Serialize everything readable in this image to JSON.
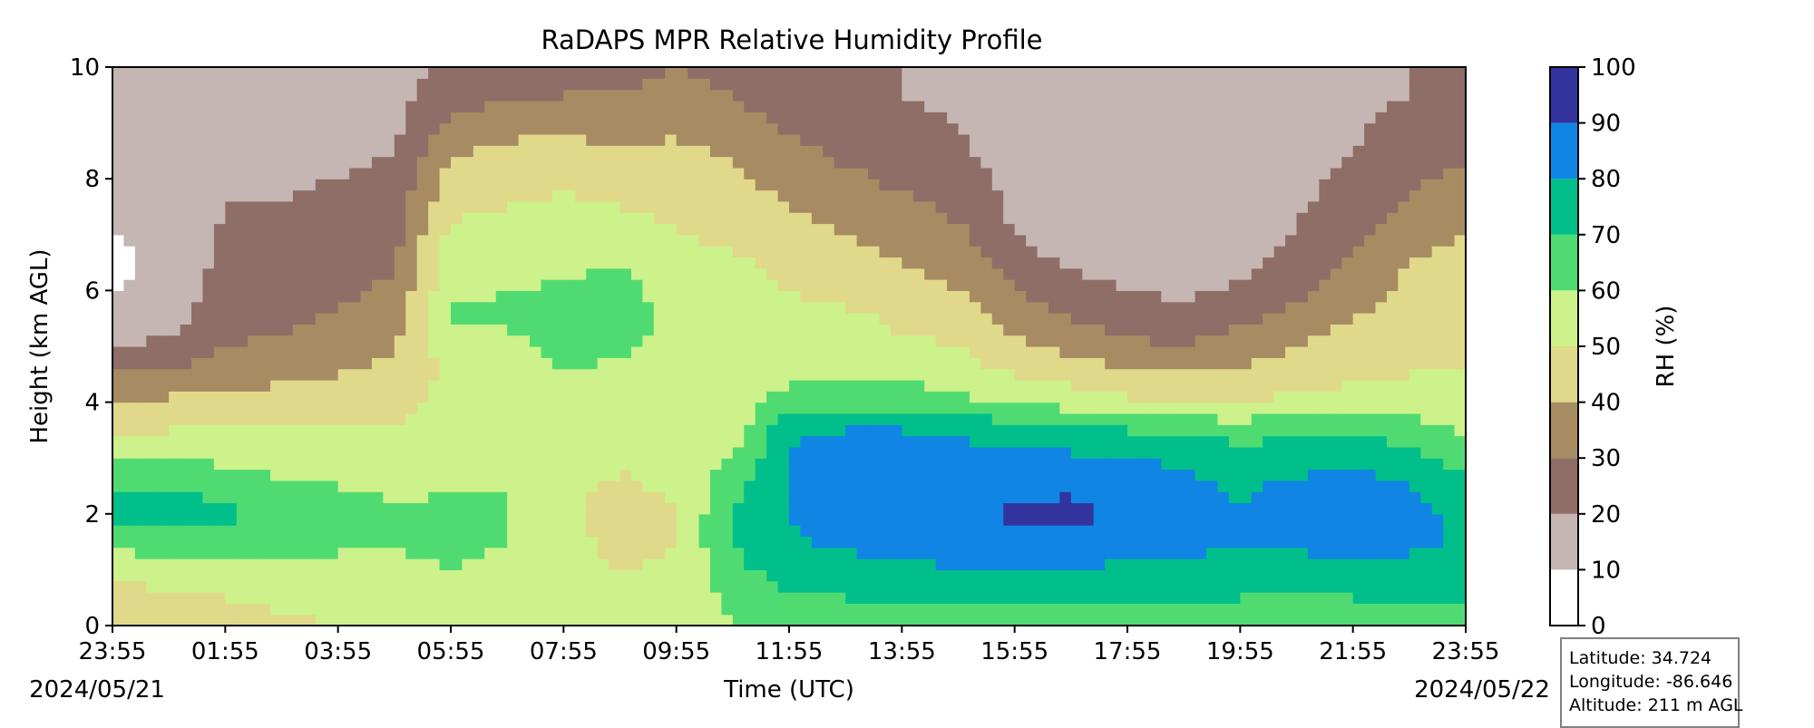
{
  "chart_data": {
    "type": "heatmap",
    "title": "RaDAPS MPR Relative Humidity Profile",
    "xlabel": "Time (UTC)",
    "ylabel": "Height (km AGL)",
    "x_ticks": [
      "23:55",
      "01:55",
      "03:55",
      "05:55",
      "07:55",
      "09:55",
      "11:55",
      "13:55",
      "15:55",
      "17:55",
      "19:55",
      "21:55",
      "23:55"
    ],
    "x_tick_hours": [
      0,
      2,
      4,
      6,
      8,
      10,
      12,
      14,
      16,
      18,
      20,
      22,
      24
    ],
    "date_start": "2024/05/21",
    "date_end": "2024/05/22",
    "xlim_hours_after_start": [
      0,
      24
    ],
    "ylim": [
      0,
      10
    ],
    "y_ticks": [
      "0",
      "2",
      "4",
      "6",
      "8",
      "10"
    ],
    "y_tick_values": [
      0,
      2,
      4,
      6,
      8,
      10
    ],
    "colorbar": {
      "label": "RH (%)",
      "levels": [
        0,
        10,
        20,
        30,
        40,
        50,
        60,
        70,
        80,
        90,
        100
      ],
      "tick_labels": [
        "0",
        "10",
        "20",
        "30",
        "40",
        "50",
        "60",
        "70",
        "80",
        "90",
        "100"
      ],
      "colors": [
        "#ffffff",
        "#c5b6b3",
        "#8e6e66",
        "#a78b62",
        "#e0d98a",
        "#cdf28b",
        "#50db72",
        "#00bf8a",
        "#1185e4",
        "#33339e"
      ]
    },
    "profiles": {
      "heights_km": [
        0,
        0.5,
        1,
        1.5,
        2,
        2.5,
        3,
        3.5,
        4,
        4.5,
        5,
        5.5,
        6,
        6.5,
        7,
        7.5,
        8,
        8.5,
        9,
        9.5,
        10
      ],
      "times_hours_after_start": [
        0,
        1,
        2,
        3,
        4,
        5,
        6,
        7,
        8,
        9,
        10,
        11,
        12,
        13,
        14,
        15,
        16,
        17,
        18,
        19,
        20,
        21,
        22,
        23,
        24
      ],
      "rh_percent": [
        [
          42,
          44,
          54,
          62,
          73,
          68,
          58,
          48,
          40,
          30,
          20,
          15,
          10,
          5,
          10,
          15,
          18,
          18,
          18,
          18,
          18
        ],
        [
          40,
          47,
          57,
          66,
          76,
          70,
          60,
          50,
          42,
          32,
          22,
          17,
          15,
          15,
          15,
          16,
          17,
          17,
          17,
          17,
          17
        ],
        [
          45,
          50,
          58,
          66,
          72,
          66,
          58,
          50,
          42,
          35,
          30,
          26,
          24,
          22,
          21,
          20,
          20,
          19,
          19,
          19,
          19
        ],
        [
          48,
          52,
          58,
          64,
          66,
          62,
          56,
          50,
          45,
          38,
          32,
          28,
          25,
          23,
          22,
          20,
          19,
          18,
          18,
          18,
          18
        ],
        [
          50,
          53,
          57,
          62,
          64,
          60,
          55,
          50,
          46,
          40,
          35,
          31,
          28,
          26,
          24,
          22,
          20,
          18,
          17,
          17,
          17
        ],
        [
          52,
          55,
          58,
          61,
          62,
          58,
          54,
          50,
          47,
          43,
          39,
          35,
          32,
          29,
          27,
          25,
          23,
          20,
          18,
          17,
          17
        ],
        [
          54,
          57,
          60,
          62,
          62,
          59,
          57,
          55,
          53,
          52,
          55,
          62,
          58,
          55,
          52,
          48,
          44,
          38,
          32,
          25,
          22
        ],
        [
          55,
          56,
          58,
          60,
          61,
          60,
          58,
          57,
          56,
          55,
          58,
          61,
          60,
          57,
          54,
          50,
          46,
          42,
          36,
          28,
          25
        ],
        [
          55,
          56,
          57,
          55,
          52,
          54,
          56,
          58,
          59,
          60,
          62,
          64,
          61,
          58,
          55,
          52,
          48,
          44,
          38,
          30,
          26
        ],
        [
          55,
          54,
          50,
          45,
          44,
          48,
          52,
          55,
          56,
          58,
          62,
          65,
          63,
          60,
          55,
          50,
          45,
          40,
          35,
          30,
          28
        ],
        [
          56,
          54,
          52,
          50,
          50,
          52,
          53,
          53,
          52,
          53,
          55,
          57,
          56,
          53,
          50,
          48,
          46,
          42,
          38,
          33,
          30
        ],
        [
          60,
          62,
          67,
          70,
          70,
          66,
          60,
          55,
          52,
          50,
          52,
          54,
          55,
          52,
          48,
          45,
          42,
          38,
          34,
          30,
          28
        ],
        [
          62,
          68,
          75,
          79,
          80,
          80,
          81,
          79,
          65,
          58,
          54,
          51,
          50,
          47,
          44,
          40,
          36,
          32,
          28,
          25,
          24
        ],
        [
          63,
          70,
          76,
          82,
          85,
          84,
          84,
          80,
          66,
          60,
          55,
          52,
          48,
          44,
          40,
          36,
          32,
          28,
          25,
          22,
          22
        ],
        [
          64,
          71,
          78,
          84,
          86,
          86,
          85,
          80,
          66,
          58,
          52,
          48,
          44,
          40,
          36,
          32,
          28,
          25,
          22,
          20,
          20
        ],
        [
          64,
          72,
          79,
          86,
          88,
          86,
          84,
          78,
          62,
          55,
          50,
          45,
          40,
          36,
          32,
          28,
          25,
          22,
          20,
          18,
          18
        ],
        [
          65,
          72,
          80,
          88,
          91,
          88,
          83,
          75,
          60,
          50,
          42,
          36,
          30,
          25,
          20,
          18,
          16,
          15,
          15,
          15,
          15
        ],
        [
          64,
          72,
          79,
          87,
          92,
          89,
          82,
          72,
          56,
          46,
          38,
          30,
          24,
          18,
          15,
          14,
          14,
          14,
          14,
          14,
          14
        ],
        [
          64,
          71,
          78,
          86,
          89,
          86,
          80,
          70,
          52,
          42,
          32,
          26,
          20,
          16,
          14,
          13,
          13,
          13,
          13,
          13,
          13
        ],
        [
          63,
          70,
          77,
          84,
          86,
          83,
          78,
          68,
          50,
          40,
          30,
          24,
          18,
          15,
          13,
          12,
          12,
          12,
          12,
          12,
          12
        ],
        [
          62,
          70,
          76,
          80,
          80,
          78,
          74,
          66,
          50,
          42,
          35,
          28,
          22,
          17,
          14,
          13,
          13,
          13,
          13,
          13,
          13
        ],
        [
          61,
          69,
          76,
          82,
          85,
          82,
          76,
          68,
          52,
          46,
          40,
          34,
          28,
          24,
          21,
          19,
          17,
          16,
          15,
          15,
          15
        ],
        [
          62,
          70,
          77,
          84,
          88,
          84,
          77,
          67,
          54,
          48,
          44,
          40,
          36,
          32,
          28,
          25,
          22,
          20,
          19,
          18,
          18
        ],
        [
          62,
          70,
          77,
          82,
          84,
          80,
          74,
          66,
          55,
          50,
          47,
          44,
          42,
          40,
          36,
          32,
          28,
          24,
          22,
          20,
          20
        ],
        [
          62,
          70,
          76,
          78,
          76,
          72,
          66,
          58,
          52,
          50,
          49,
          48,
          46,
          44,
          40,
          36,
          32,
          28,
          24,
          22,
          22
        ]
      ]
    }
  },
  "info_box": {
    "latitude": "Latitude: 34.724",
    "longitude": "Longitude: -86.646",
    "altitude": "Altitude: 211 m AGL"
  }
}
